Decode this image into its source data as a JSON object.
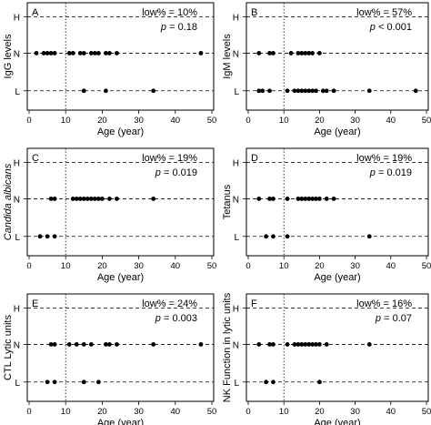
{
  "shared": {
    "xlabel": "Age (year)",
    "x_ticks": [
      0,
      10,
      20,
      30,
      40,
      50
    ],
    "y_levels": [
      "H",
      "N",
      "L"
    ],
    "reference_age": 10,
    "xlim": [
      0,
      50
    ]
  },
  "chart_data": [
    {
      "type": "scatter",
      "panel_label": "A",
      "ylabel": "IgG levels",
      "stat_low": "low% = 10%",
      "stat_p_prefix": "p",
      "stat_p_rest": " = 0.18",
      "series": [
        {
          "level": "N",
          "x": [
            2,
            4,
            5,
            6,
            7,
            11,
            12,
            14,
            15,
            17,
            18,
            19,
            21,
            22,
            24,
            47
          ]
        },
        {
          "level": "L",
          "x": [
            15,
            21,
            34
          ]
        }
      ]
    },
    {
      "type": "scatter",
      "panel_label": "B",
      "ylabel": "IgM levels",
      "stat_low": "low% = 57%",
      "stat_p_prefix": "p",
      "stat_p_rest": " < 0.001",
      "series": [
        {
          "level": "N",
          "x": [
            3,
            6,
            7,
            12,
            14,
            15,
            16,
            17,
            18,
            20
          ]
        },
        {
          "level": "L",
          "x": [
            3,
            4,
            6,
            11,
            13,
            14,
            15,
            16,
            17,
            18,
            19,
            21,
            22,
            24,
            34,
            47
          ]
        }
      ]
    },
    {
      "type": "scatter",
      "panel_label": "C",
      "ylabel": "Candida albicans",
      "stat_low": "low% = 19%",
      "stat_p_prefix": "p",
      "stat_p_rest": " = 0.019",
      "series": [
        {
          "level": "N",
          "x": [
            6,
            7,
            12,
            13,
            14,
            15,
            16,
            17,
            18,
            19,
            20,
            22,
            24,
            34
          ]
        },
        {
          "level": "L",
          "x": [
            3,
            5,
            7
          ]
        }
      ]
    },
    {
      "type": "scatter",
      "panel_label": "D",
      "ylabel": "Tetanus",
      "stat_low": "low% = 19%",
      "stat_p_prefix": "p",
      "stat_p_rest": " = 0.019",
      "series": [
        {
          "level": "N",
          "x": [
            3,
            6,
            7,
            11,
            14,
            15,
            16,
            17,
            18,
            19,
            20,
            22,
            24
          ]
        },
        {
          "level": "L",
          "x": [
            5,
            7,
            11,
            34
          ]
        }
      ]
    },
    {
      "type": "scatter",
      "panel_label": "E",
      "ylabel": "CTL Lytic units",
      "stat_low": "low% = 24%",
      "stat_p_prefix": "p",
      "stat_p_rest": " = 0.003",
      "series": [
        {
          "level": "N",
          "x": [
            6,
            7,
            11,
            13,
            15,
            17,
            21,
            22,
            24,
            34,
            47
          ]
        },
        {
          "level": "L",
          "x": [
            5,
            7,
            15,
            19
          ]
        }
      ]
    },
    {
      "type": "scatter",
      "panel_label": "F",
      "ylabel": "NK Function in lytic units",
      "stat_low": "low% = 16%",
      "stat_p_prefix": "p",
      "stat_p_rest": " = 0.07",
      "series": [
        {
          "level": "N",
          "x": [
            3,
            6,
            7,
            11,
            13,
            14,
            15,
            16,
            17,
            18,
            19,
            20,
            22,
            34
          ]
        },
        {
          "level": "L",
          "x": [
            5,
            7,
            20
          ]
        }
      ]
    }
  ]
}
